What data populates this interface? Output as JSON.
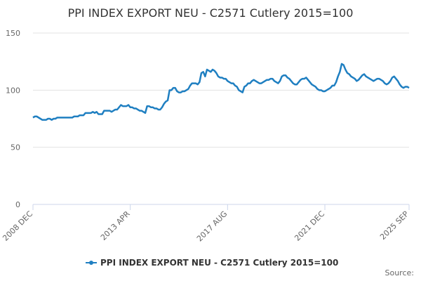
{
  "chart_data": {
    "type": "line",
    "title": "PPI INDEX EXPORT NEU - C2571 Cutlery 2015=100",
    "source": "Source:",
    "categories": [
      "2008 DEC",
      null,
      null,
      null,
      null,
      null,
      null,
      null,
      null,
      null,
      null,
      null,
      null,
      null,
      null,
      null,
      null,
      null,
      null,
      null,
      null,
      null,
      null,
      null,
      null,
      null,
      null,
      null,
      null,
      null,
      null,
      null,
      null,
      null,
      null,
      null,
      null,
      null,
      null,
      null,
      null,
      null,
      null,
      null,
      null,
      null,
      null,
      null,
      null,
      null,
      null,
      null,
      "2013 APR",
      null,
      null,
      null,
      null,
      null,
      null,
      null,
      null,
      null,
      null,
      null,
      null,
      null,
      null,
      null,
      null,
      null,
      null,
      null,
      null,
      null,
      null,
      null,
      null,
      null,
      null,
      null,
      null,
      null,
      null,
      null,
      null,
      null,
      null,
      null,
      null,
      null,
      null,
      null,
      null,
      null,
      null,
      null,
      null,
      null,
      null,
      null,
      null,
      null,
      null,
      null,
      "2017 AUG",
      null,
      null,
      null,
      null,
      null,
      null,
      null,
      null,
      null,
      null,
      null,
      null,
      null,
      null,
      null,
      null,
      null,
      null,
      null,
      null,
      null,
      null,
      null,
      null,
      null,
      null,
      null,
      null,
      null,
      null,
      null,
      null,
      null,
      null,
      null,
      null,
      null,
      null,
      null,
      null,
      null,
      null,
      null,
      null,
      null,
      null,
      null,
      null,
      null,
      null,
      null,
      "2021 DEC",
      null,
      null,
      null,
      null,
      null,
      null,
      null,
      null,
      null,
      null,
      null,
      null,
      null,
      null,
      null,
      null,
      null,
      null,
      null,
      null,
      null,
      null,
      null,
      null,
      null,
      null,
      null,
      null,
      null,
      null,
      null,
      null,
      null,
      null,
      null,
      null,
      null,
      null,
      null,
      null,
      null,
      null,
      null,
      null,
      "2025 SEP"
    ],
    "series": [
      {
        "name": "PPI INDEX EXPORT NEU - C2571 Cutlery 2015=100",
        "color": "#1f7fc1",
        "values": [
          76,
          77,
          77,
          76,
          75,
          74,
          74,
          74,
          75,
          75,
          74,
          75,
          75,
          76,
          76,
          76,
          76,
          76,
          76,
          76,
          76,
          76,
          77,
          77,
          77,
          78,
          78,
          78,
          80,
          80,
          80,
          80,
          81,
          80,
          81,
          79,
          79,
          79,
          82,
          82,
          82,
          82,
          81,
          82,
          83,
          83,
          85,
          87,
          86,
          86,
          86,
          87,
          85,
          85,
          84,
          84,
          83,
          82,
          82,
          81,
          80,
          86,
          86,
          85,
          85,
          84,
          84,
          83,
          83,
          85,
          88,
          90,
          91,
          100,
          100,
          102,
          102,
          99,
          98,
          98,
          99,
          99,
          100,
          101,
          104,
          106,
          106,
          106,
          105,
          107,
          115,
          116,
          112,
          118,
          117,
          116,
          118,
          117,
          115,
          112,
          111,
          111,
          110,
          110,
          108,
          107,
          106,
          106,
          104,
          103,
          100,
          99,
          98,
          103,
          104,
          106,
          106,
          108,
          109,
          108,
          107,
          106,
          106,
          107,
          108,
          109,
          109,
          110,
          110,
          108,
          107,
          106,
          108,
          112,
          113,
          113,
          111,
          110,
          108,
          106,
          105,
          105,
          107,
          109,
          110,
          110,
          111,
          109,
          107,
          105,
          104,
          103,
          101,
          100,
          100,
          99,
          99,
          100,
          101,
          102,
          104,
          104,
          107,
          112,
          116,
          123,
          122,
          118,
          115,
          114,
          112,
          111,
          110,
          108,
          109,
          111,
          113,
          114,
          112,
          111,
          110,
          109,
          108,
          109,
          110,
          110,
          109,
          108,
          106,
          105,
          106,
          108,
          111,
          112,
          110,
          108,
          105,
          103,
          102,
          103,
          103,
          102
        ]
      }
    ],
    "ylim": [
      0,
      150
    ],
    "yticks": [
      0,
      50,
      100,
      150
    ],
    "grid": true
  }
}
